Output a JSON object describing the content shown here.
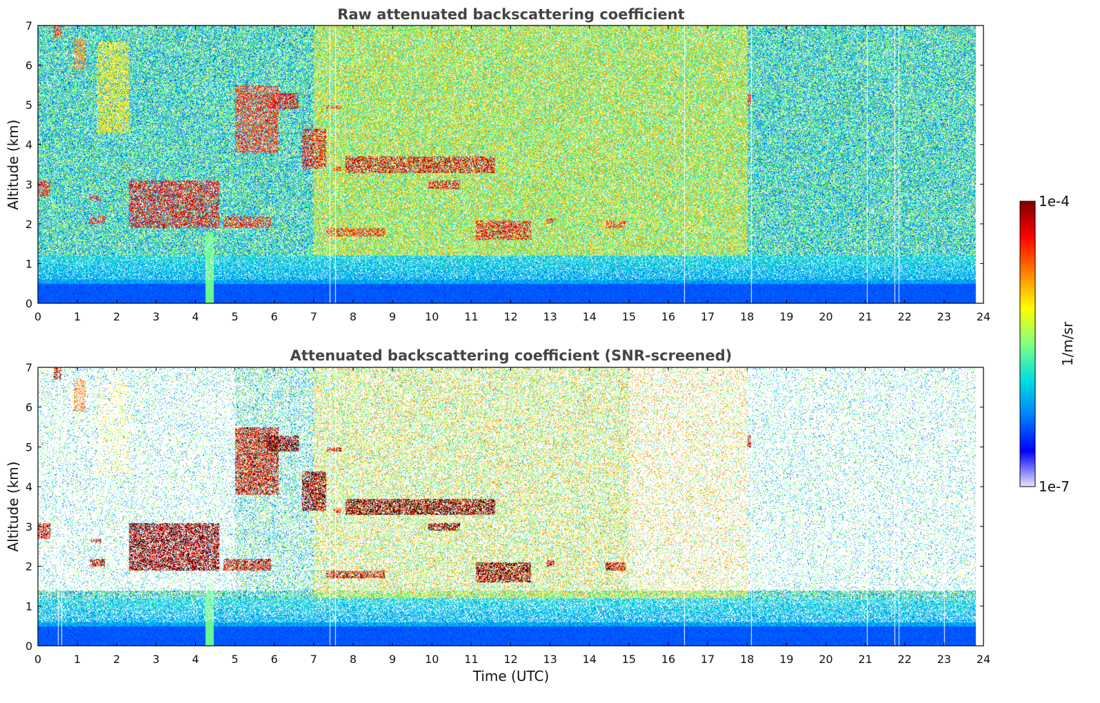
{
  "chart_data": [
    {
      "type": "heatmap",
      "title": "Raw attenuated backscattering coefficient",
      "xlabel": "",
      "ylabel": "Altitude (km)",
      "xlim": [
        0,
        24
      ],
      "ylim": [
        0,
        7
      ],
      "x_ticks": [
        "0",
        "1",
        "2",
        "3",
        "4",
        "5",
        "6",
        "7",
        "8",
        "9",
        "10",
        "11",
        "12",
        "13",
        "14",
        "15",
        "16",
        "17",
        "18",
        "19",
        "20",
        "21",
        "22",
        "23",
        "24"
      ],
      "y_ticks": [
        "0",
        "1",
        "2",
        "3",
        "4",
        "5",
        "6",
        "7"
      ],
      "data_end_hour": 23.8,
      "noise_level": "high",
      "gaps": [
        7.4,
        7.55,
        16.4,
        18.1,
        21.05,
        21.75,
        21.85
      ],
      "features": [
        {
          "kind": "aerosol-layer",
          "x": [
            0,
            23.8
          ],
          "y": [
            0,
            0.5
          ],
          "intensity": 0.18
        },
        {
          "kind": "cloud",
          "x": [
            0.4,
            0.6
          ],
          "y": [
            6.7,
            7.0
          ],
          "intensity": 0.9
        },
        {
          "kind": "cloud",
          "x": [
            0.9,
            1.2
          ],
          "y": [
            5.9,
            6.7
          ],
          "intensity": 0.8
        },
        {
          "kind": "cloud",
          "x": [
            1.5,
            2.3
          ],
          "y": [
            4.3,
            6.6
          ],
          "intensity": 0.7
        },
        {
          "kind": "cloud",
          "x": [
            0,
            0.3
          ],
          "y": [
            2.7,
            3.1
          ],
          "intensity": 0.9
        },
        {
          "kind": "cloud",
          "x": [
            1.3,
            1.6
          ],
          "y": [
            2.6,
            2.7
          ],
          "intensity": 0.9
        },
        {
          "kind": "cloud",
          "x": [
            1.3,
            1.7
          ],
          "y": [
            2.0,
            2.2
          ],
          "intensity": 0.9
        },
        {
          "kind": "cloud",
          "x": [
            2.3,
            4.6
          ],
          "y": [
            1.9,
            3.1
          ],
          "intensity": 0.95
        },
        {
          "kind": "cloud",
          "x": [
            4.7,
            5.9
          ],
          "y": [
            1.9,
            2.2
          ],
          "intensity": 0.9
        },
        {
          "kind": "cloud",
          "x": [
            5.0,
            6.1
          ],
          "y": [
            3.8,
            5.5
          ],
          "intensity": 0.9
        },
        {
          "kind": "cloud",
          "x": [
            5.8,
            6.6
          ],
          "y": [
            4.9,
            5.3
          ],
          "intensity": 0.95
        },
        {
          "kind": "cloud",
          "x": [
            7.3,
            7.7
          ],
          "y": [
            4.9,
            5.0
          ],
          "intensity": 0.9
        },
        {
          "kind": "cloud",
          "x": [
            6.7,
            7.3
          ],
          "y": [
            3.4,
            4.4
          ],
          "intensity": 0.95
        },
        {
          "kind": "cloud",
          "x": [
            7.5,
            7.7
          ],
          "y": [
            3.35,
            3.45
          ],
          "intensity": 0.9
        },
        {
          "kind": "cloud",
          "x": [
            7.8,
            11.6
          ],
          "y": [
            3.3,
            3.7
          ],
          "intensity": 0.98
        },
        {
          "kind": "cloud",
          "x": [
            9.9,
            10.7
          ],
          "y": [
            2.9,
            3.1
          ],
          "intensity": 0.95
        },
        {
          "kind": "cloud",
          "x": [
            7.3,
            8.8
          ],
          "y": [
            1.7,
            1.9
          ],
          "intensity": 0.9
        },
        {
          "kind": "cloud",
          "x": [
            11.1,
            12.5
          ],
          "y": [
            1.6,
            2.1
          ],
          "intensity": 0.95
        },
        {
          "kind": "cloud",
          "x": [
            12.9,
            13.1
          ],
          "y": [
            2.0,
            2.15
          ],
          "intensity": 0.9
        },
        {
          "kind": "cloud",
          "x": [
            14.4,
            14.9
          ],
          "y": [
            1.9,
            2.1
          ],
          "intensity": 0.9
        },
        {
          "kind": "cloud",
          "x": [
            18.0,
            18.1
          ],
          "y": [
            5.0,
            5.3
          ],
          "intensity": 0.9
        },
        {
          "kind": "plume",
          "x": [
            4.25,
            4.45
          ],
          "y": [
            0,
            1.8
          ],
          "intensity": 0.45
        }
      ]
    },
    {
      "type": "heatmap",
      "title": "Attenuated backscattering coefficient (SNR-screened)",
      "xlabel": "Time (UTC)",
      "ylabel": "Altitude (km)",
      "xlim": [
        0,
        24
      ],
      "ylim": [
        0,
        7
      ],
      "x_ticks": [
        "0",
        "1",
        "2",
        "3",
        "4",
        "5",
        "6",
        "7",
        "8",
        "9",
        "10",
        "11",
        "12",
        "13",
        "14",
        "15",
        "16",
        "17",
        "18",
        "19",
        "20",
        "21",
        "22",
        "23",
        "24"
      ],
      "y_ticks": [
        "0",
        "1",
        "2",
        "3",
        "4",
        "5",
        "6",
        "7"
      ],
      "data_end_hour": 23.8,
      "noise_level": "screened",
      "gaps": [
        0.5,
        0.6,
        7.4,
        7.55,
        16.4,
        18.1,
        21.05,
        21.75,
        21.85,
        23.0
      ],
      "features": "same as raw panel"
    }
  ],
  "colorbar": {
    "label": "1/m/sr",
    "top_label": "1e-4",
    "bottom_label": "1e-7",
    "colors": [
      "#e6e6f5",
      "#0000ff",
      "#0080ff",
      "#00e0e0",
      "#80ff80",
      "#ffff00",
      "#ff8000",
      "#ff0000",
      "#800000"
    ]
  }
}
